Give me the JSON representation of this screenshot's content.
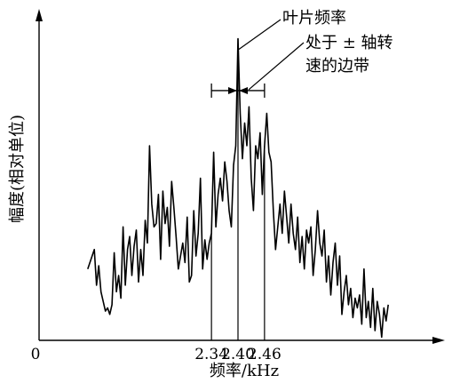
{
  "chart_data": {
    "type": "line",
    "title": "",
    "xlabel": "频率/kHz",
    "ylabel": "幅度(相对单位)",
    "origin_label": "0",
    "x_unit": "kHz",
    "xlim": [
      1.95,
      2.85
    ],
    "ylim": [
      0,
      1.0
    ],
    "tick_labels": [
      "2.34",
      "2.40",
      "2.46"
    ],
    "ticks": [
      2.34,
      2.4,
      2.46
    ],
    "grid": false,
    "legend": "none",
    "annotations": {
      "blade_frequency": "叶片频率",
      "sideband_line1": "处于 ± 轴转",
      "sideband_line2": "速的边带"
    },
    "series": [
      {
        "color": "#000000",
        "x": [
          2.06,
          2.075,
          2.08,
          2.085,
          2.09,
          2.1,
          2.105,
          2.11,
          2.115,
          2.12,
          2.125,
          2.13,
          2.135,
          2.14,
          2.145,
          2.15,
          2.155,
          2.16,
          2.165,
          2.17,
          2.175,
          2.18,
          2.185,
          2.19,
          2.195,
          2.2,
          2.205,
          2.21,
          2.215,
          2.22,
          2.225,
          2.23,
          2.235,
          2.24,
          2.245,
          2.25,
          2.255,
          2.26,
          2.265,
          2.27,
          2.275,
          2.28,
          2.285,
          2.29,
          2.295,
          2.3,
          2.305,
          2.31,
          2.315,
          2.32,
          2.325,
          2.33,
          2.335,
          2.34,
          2.345,
          2.35,
          2.355,
          2.36,
          2.365,
          2.37,
          2.375,
          2.38,
          2.385,
          2.39,
          2.395,
          2.4,
          2.405,
          2.41,
          2.415,
          2.42,
          2.425,
          2.43,
          2.435,
          2.44,
          2.445,
          2.45,
          2.455,
          2.46,
          2.465,
          2.47,
          2.475,
          2.48,
          2.485,
          2.49,
          2.495,
          2.5,
          2.505,
          2.51,
          2.515,
          2.52,
          2.525,
          2.53,
          2.535,
          2.54,
          2.545,
          2.55,
          2.555,
          2.56,
          2.565,
          2.57,
          2.575,
          2.58,
          2.585,
          2.59,
          2.595,
          2.6,
          2.605,
          2.61,
          2.615,
          2.62,
          2.625,
          2.63,
          2.635,
          2.64,
          2.645,
          2.65,
          2.655,
          2.66,
          2.665,
          2.67,
          2.675,
          2.68,
          2.685,
          2.69,
          2.695,
          2.7,
          2.705,
          2.71,
          2.715,
          2.72,
          2.725,
          2.73,
          2.735,
          2.74
        ],
        "y": [
          0.22,
          0.28,
          0.17,
          0.23,
          0.15,
          0.09,
          0.1,
          0.08,
          0.11,
          0.27,
          0.15,
          0.2,
          0.13,
          0.35,
          0.17,
          0.28,
          0.32,
          0.2,
          0.29,
          0.34,
          0.18,
          0.28,
          0.2,
          0.37,
          0.3,
          0.6,
          0.42,
          0.35,
          0.36,
          0.45,
          0.25,
          0.46,
          0.36,
          0.41,
          0.29,
          0.49,
          0.41,
          0.32,
          0.22,
          0.26,
          0.3,
          0.24,
          0.38,
          0.18,
          0.2,
          0.4,
          0.26,
          0.33,
          0.5,
          0.22,
          0.31,
          0.25,
          0.3,
          0.33,
          0.58,
          0.35,
          0.45,
          0.5,
          0.43,
          0.55,
          0.49,
          0.4,
          0.35,
          0.54,
          0.6,
          0.93,
          0.7,
          0.56,
          0.67,
          0.6,
          0.72,
          0.5,
          0.4,
          0.6,
          0.56,
          0.64,
          0.45,
          0.6,
          0.7,
          0.58,
          0.55,
          0.4,
          0.28,
          0.35,
          0.42,
          0.33,
          0.46,
          0.38,
          0.3,
          0.42,
          0.33,
          0.28,
          0.38,
          0.24,
          0.32,
          0.22,
          0.34,
          0.3,
          0.35,
          0.2,
          0.28,
          0.4,
          0.3,
          0.26,
          0.34,
          0.18,
          0.26,
          0.14,
          0.24,
          0.3,
          0.17,
          0.26,
          0.08,
          0.15,
          0.2,
          0.11,
          0.16,
          0.07,
          0.13,
          0.1,
          0.14,
          0.05,
          0.22,
          0.07,
          0.12,
          0.04,
          0.16,
          0.03,
          0.12,
          0.08,
          0.01,
          0.1,
          0.06,
          0.11
        ]
      }
    ]
  }
}
